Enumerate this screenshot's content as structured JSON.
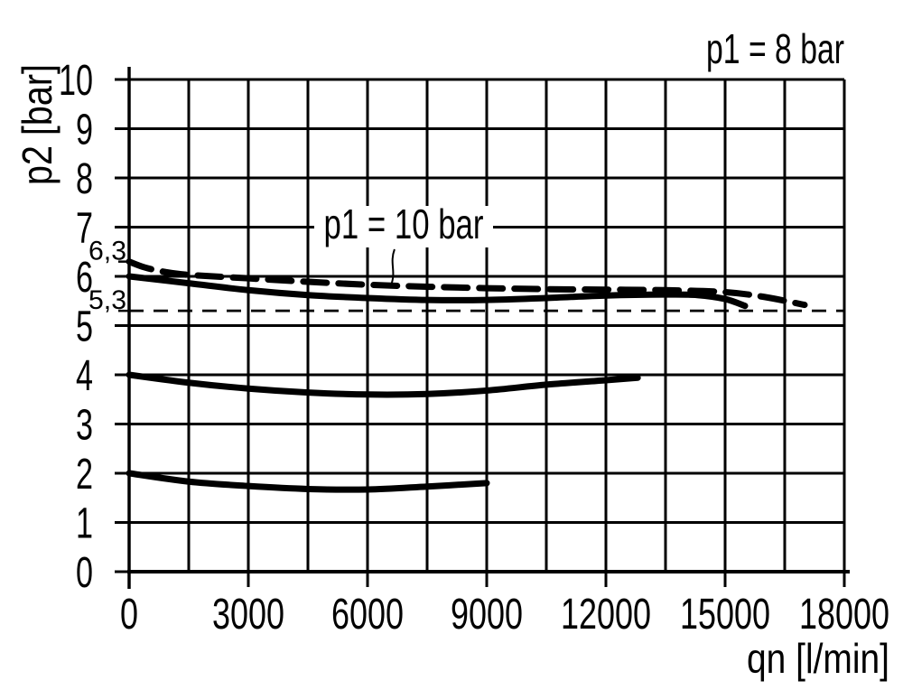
{
  "chart_data": {
    "type": "line",
    "xlabel": "qn [l/min]",
    "ylabel": "p2 [bar]",
    "grid": true,
    "colors": {
      "ink": "#000000",
      "background": "#ffffff"
    },
    "x_axis": {
      "min": 0,
      "max": 18000,
      "grid_step": 1500,
      "tick_step": 3000,
      "tick_labels": [
        "0",
        "3000",
        "6000",
        "9000",
        "12000",
        "15000",
        "18000"
      ]
    },
    "y_axis": {
      "min": 0,
      "max": 10,
      "grid_step": 1,
      "tick_labels": [
        "0",
        "1",
        "2",
        "3",
        "4",
        "5",
        "6",
        "7",
        "8",
        "9",
        "10"
      ]
    },
    "reference_ticks": [
      {
        "value": 6.3,
        "label": "6,3"
      },
      {
        "value": 5.3,
        "label": "5,3"
      }
    ],
    "reference_lines": [
      {
        "value": 5.3,
        "style": "thin-dashed"
      }
    ],
    "series": [
      {
        "id": "p1-10bar-dashed",
        "style": "thick-dashed",
        "points": [
          [
            0,
            6.3
          ],
          [
            400,
            6.18
          ],
          [
            900,
            6.09
          ],
          [
            1500,
            6.03
          ],
          [
            3000,
            5.96
          ],
          [
            4500,
            5.89
          ],
          [
            6000,
            5.83
          ],
          [
            7500,
            5.79
          ],
          [
            9000,
            5.76
          ],
          [
            10500,
            5.74
          ],
          [
            12000,
            5.73
          ],
          [
            13500,
            5.72
          ],
          [
            15000,
            5.68
          ],
          [
            16000,
            5.58
          ],
          [
            17000,
            5.42
          ]
        ]
      },
      {
        "id": "p1-8bar-solid",
        "style": "thick-solid",
        "points": [
          [
            0,
            6.0
          ],
          [
            1500,
            5.86
          ],
          [
            3000,
            5.72
          ],
          [
            4500,
            5.62
          ],
          [
            6000,
            5.56
          ],
          [
            7500,
            5.52
          ],
          [
            9000,
            5.52
          ],
          [
            10500,
            5.56
          ],
          [
            12000,
            5.61
          ],
          [
            13500,
            5.63
          ],
          [
            14300,
            5.62
          ],
          [
            15000,
            5.54
          ],
          [
            15500,
            5.4
          ]
        ]
      },
      {
        "id": "mid-setpoint-solid",
        "style": "thick-solid",
        "points": [
          [
            0,
            4.0
          ],
          [
            1500,
            3.84
          ],
          [
            3000,
            3.72
          ],
          [
            4500,
            3.64
          ],
          [
            6000,
            3.6
          ],
          [
            7500,
            3.61
          ],
          [
            9000,
            3.68
          ],
          [
            10500,
            3.8
          ],
          [
            12000,
            3.89
          ],
          [
            12800,
            3.94
          ]
        ]
      },
      {
        "id": "low-setpoint-solid",
        "style": "thick-solid",
        "points": [
          [
            0,
            2.0
          ],
          [
            1500,
            1.83
          ],
          [
            3000,
            1.74
          ],
          [
            4500,
            1.68
          ],
          [
            6000,
            1.67
          ],
          [
            7500,
            1.73
          ],
          [
            9000,
            1.8
          ]
        ]
      }
    ],
    "annotations": [
      {
        "id": "p8",
        "text": "p1 = 8 bar"
      },
      {
        "id": "p10",
        "text": "p1 = 10 bar",
        "leader": [
          [
            6680,
            6.55
          ],
          [
            6580,
            5.8
          ]
        ]
      }
    ]
  }
}
